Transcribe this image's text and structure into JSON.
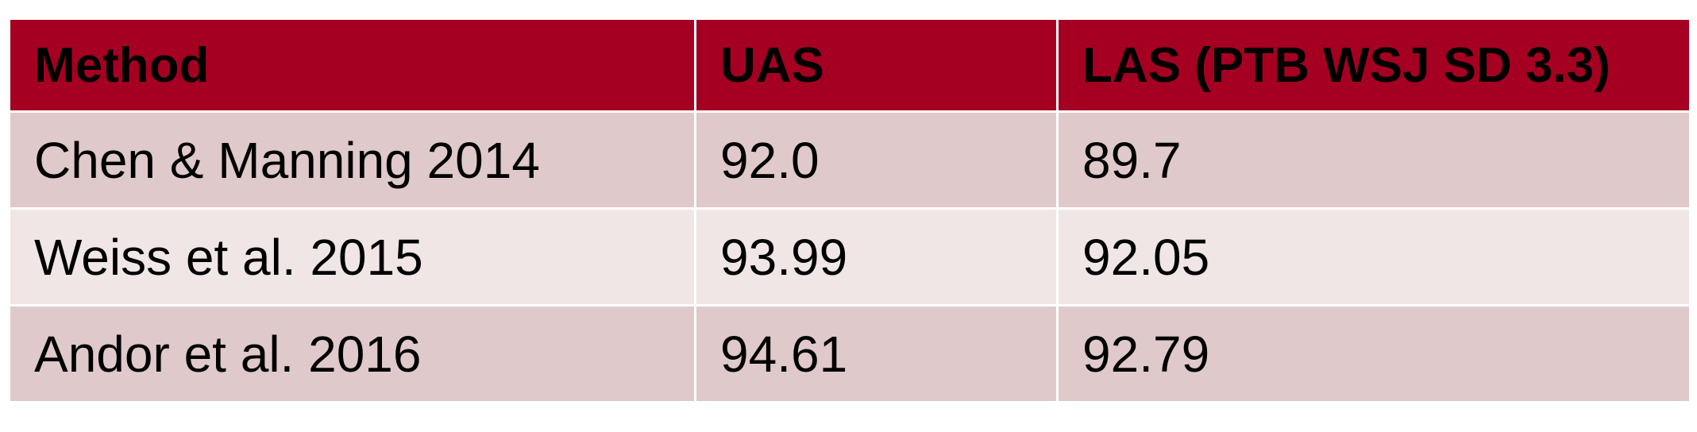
{
  "colors": {
    "header_bg": "#a50021",
    "row_dark": "#dfc9ca",
    "row_light": "#f0e6e6"
  },
  "table": {
    "headers": [
      "Method",
      "UAS",
      "LAS (PTB WSJ SD 3.3)"
    ],
    "rows": [
      [
        "Chen & Manning 2014",
        "92.0",
        "89.7"
      ],
      [
        "Weiss et al. 2015",
        "93.99",
        "92.05"
      ],
      [
        "Andor et al. 2016",
        "94.61",
        "92.79"
      ]
    ]
  }
}
